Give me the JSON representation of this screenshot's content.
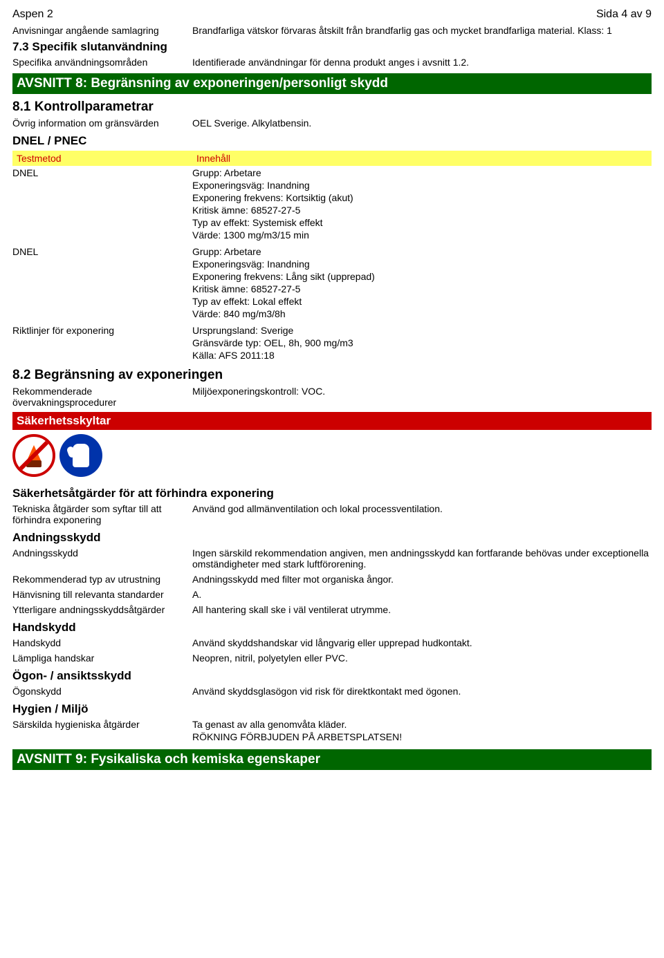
{
  "header": {
    "title_left": "Aspen 2",
    "title_right": "Sida 4 av 9"
  },
  "storage": {
    "label": "Anvisningar angående samlagring",
    "value": "Brandfarliga vätskor förvaras åtskilt från brandfarlig gas och mycket brandfarliga material. Klass: 1"
  },
  "sec73": {
    "heading": "7.3 Specifik slutanvändning",
    "row": {
      "label": "Specifika användningsområden",
      "value": "Identifierade användningar för denna produkt anges i avsnitt 1.2."
    }
  },
  "sec8": {
    "title": "AVSNITT 8: Begränsning av exponeringen/personligt skydd",
    "s81": {
      "heading": "8.1 Kontrollparametrar",
      "row1": {
        "label": "Övrig information om gränsvärden",
        "value": "OEL Sverige. Alkylatbensin."
      },
      "dnel_pnec": "DNEL / PNEC",
      "yellow": {
        "label": "Testmetod",
        "value": "Innehåll"
      },
      "dnel1": {
        "label": "DNEL",
        "lines": [
          "Grupp: Arbetare",
          "Exponeringsväg: Inandning",
          "Exponering frekvens: Kortsiktig (akut)",
          "Kritisk ämne: 68527-27-5",
          "Typ av effekt: Systemisk effekt",
          "Värde: 1300 mg/m3/15 min"
        ]
      },
      "dnel2": {
        "label": "DNEL",
        "lines": [
          "Grupp: Arbetare",
          "Exponeringsväg: Inandning",
          "Exponering frekvens: Lång sikt (upprepad)",
          "Kritisk ämne: 68527-27-5",
          "Typ av effekt: Lokal effekt",
          "Värde: 840 mg/m3/8h"
        ]
      },
      "guidelines": {
        "label": "Riktlinjer för exponering",
        "lines": [
          "Ursprungsland: Sverige",
          "Gränsvärde typ: OEL, 8h, 900 mg/m3",
          "Källa: AFS 2011:18"
        ]
      }
    },
    "s82": {
      "heading": "8.2 Begränsning av exponeringen",
      "row": {
        "label": "Rekommenderade övervakningsprocedurer",
        "value": "Miljöexponeringskontroll: VOC."
      },
      "safety_signs": "Säkerhetsskyltar"
    }
  },
  "prevent": {
    "heading": "Säkerhetsåtgärder för att förhindra exponering",
    "row": {
      "label": "Tekniska åtgärder som syftar till att förhindra exponering",
      "value": "Använd god allmänventilation och lokal processventilation."
    }
  },
  "respiratory": {
    "heading": "Andningsskydd",
    "row1": {
      "label": "Andningsskydd",
      "value": "Ingen särskild rekommendation angiven, men andningsskydd kan fortfarande behövas under exceptionella omständigheter med stark luftförorening."
    },
    "row2": {
      "label": "Rekommenderad typ av utrustning",
      "value": "Andningsskydd med filter mot organiska ångor."
    },
    "row3": {
      "label": "Hänvisning till relevanta standarder",
      "value": "A."
    },
    "row4": {
      "label": "Ytterligare andningsskyddsåtgärder",
      "value": "All hantering skall ske i väl ventilerat utrymme."
    }
  },
  "hands": {
    "heading": "Handskydd",
    "row1": {
      "label": "Handskydd",
      "value": "Använd skyddshandskar vid långvarig eller upprepad hudkontakt."
    },
    "row2": {
      "label": "Lämpliga handskar",
      "value": "Neopren, nitril, polyetylen eller PVC."
    }
  },
  "eyes": {
    "heading": "Ögon- / ansiktsskydd",
    "row": {
      "label": "Ögonskydd",
      "value": "Använd skyddsglasögon vid risk för direktkontakt med ögonen."
    }
  },
  "hygiene": {
    "heading": "Hygien / Miljö",
    "row": {
      "label": "Särskilda hygieniska åtgärder",
      "lines": [
        "Ta genast av alla genomvåta kläder.",
        "RÖKNING FÖRBJUDEN PÅ ARBETSPLATSEN!"
      ]
    }
  },
  "sec9": {
    "title": "AVSNITT 9: Fysikaliska och kemiska egenskaper"
  }
}
